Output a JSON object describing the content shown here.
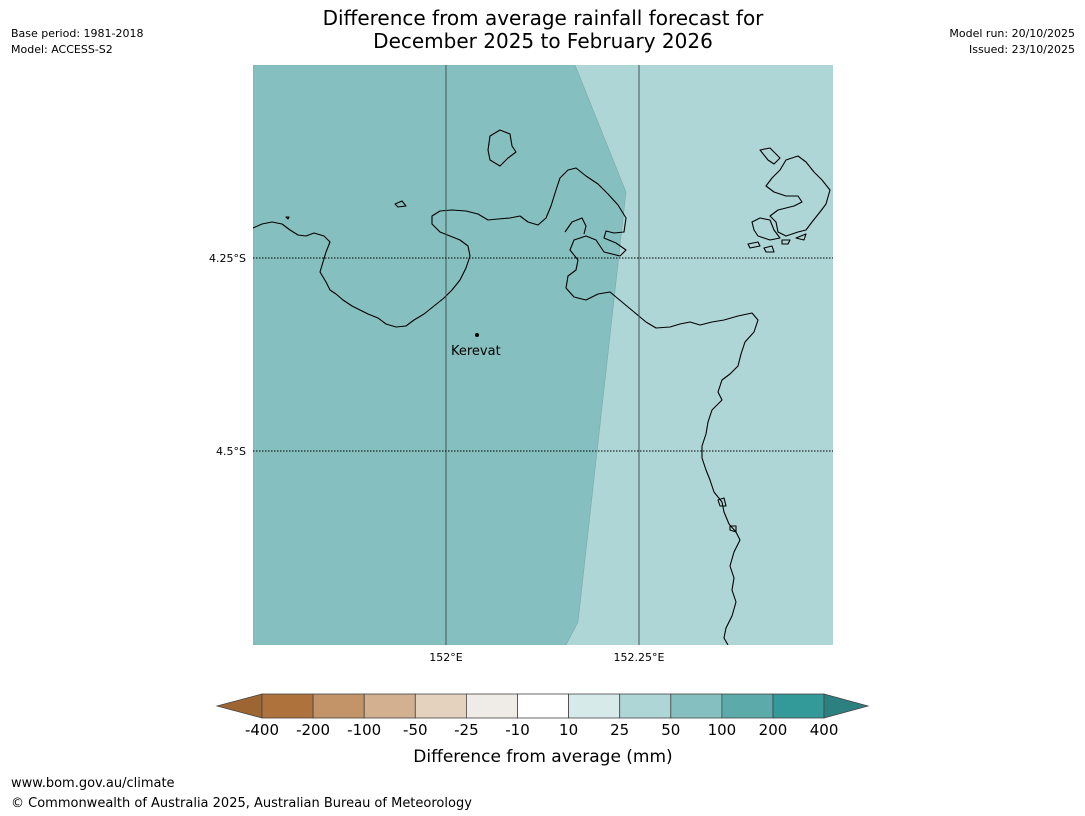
{
  "header": {
    "base_period": "Base period: 1981-2018",
    "model": "Model: ACCESS-S2",
    "model_run": "Model run: 20/10/2025",
    "issued": "Issued: 23/10/2025",
    "title_line1": "Difference from average rainfall forecast for",
    "title_line2": "December 2025 to February 2026"
  },
  "map": {
    "lat_labels": [
      "4.25°S",
      "4.5°S"
    ],
    "lon_labels": [
      "152°E",
      "152.25°E"
    ],
    "place": {
      "name": "Kerevat"
    },
    "zones": [
      {
        "category": "50 to 100",
        "color": "#86bfbf",
        "region": "west"
      },
      {
        "category": "25 to 50",
        "color": "#aed6d6",
        "region": "east"
      }
    ],
    "land_outline_color": "#000000",
    "gridline_color": "#445555"
  },
  "colorbar": {
    "ticks": [
      "-400",
      "-200",
      "-100",
      "-50",
      "-25",
      "-10",
      "10",
      "25",
      "50",
      "100",
      "200",
      "400"
    ],
    "colors": [
      "#ae733c",
      "#c39468",
      "#d3b08f",
      "#e4d2bf",
      "#efebe7",
      "#ffffff",
      "#d7eaea",
      "#aed6d6",
      "#86bfbf",
      "#5caaaa",
      "#339999"
    ],
    "extend_low_color": "#9c6532",
    "extend_high_color": "#2d8080",
    "label": "Difference from average (mm)"
  },
  "footer": {
    "url": "www.bom.gov.au/climate",
    "copyright": "© Commonwealth of Australia 2025, Australian Bureau of Meteorology"
  }
}
